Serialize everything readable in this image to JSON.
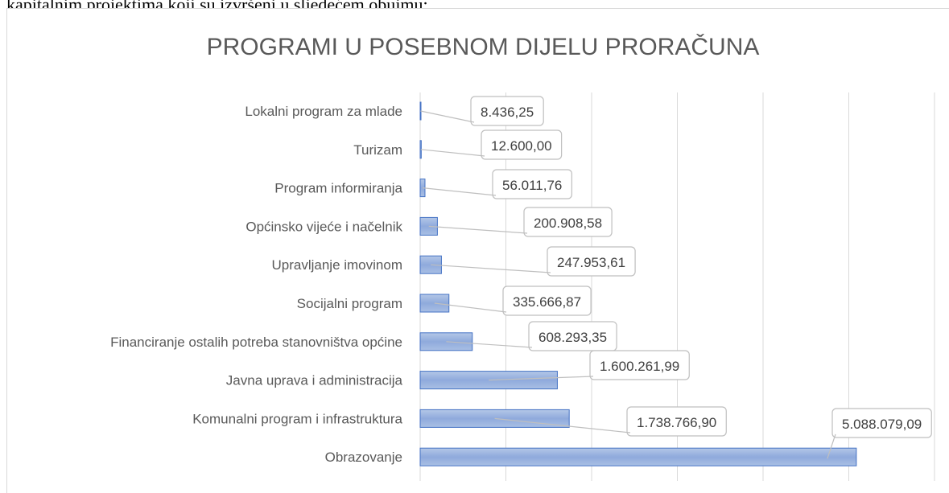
{
  "context_text": "kapitalnim projektima koji su izvršeni u sljedećem obujmu:",
  "chart_data": {
    "type": "bar",
    "orientation": "horizontal",
    "title": "PROGRAMI U POSEBNOM DIJELU PRORAČUNA",
    "categories": [
      "Lokalni program za mlade",
      "Turizam",
      "Program informiranja",
      "Općinsko vijeće i načelnik",
      "Upravljanje imovinom",
      "Socijalni program",
      "Financiranje ostalih potreba stanovništva općine",
      "Javna uprava i administracija",
      "Komunalni program i infrastruktura",
      "Obrazovanje"
    ],
    "values": [
      8436.25,
      12600.0,
      56011.76,
      200908.58,
      247953.61,
      335666.87,
      608293.35,
      1600261.99,
      1738766.9,
      5088079.09
    ],
    "value_labels": [
      "8.436,25",
      "12.600,00",
      "56.011,76",
      "200.908,58",
      "247.953,61",
      "335.666,87",
      "608.293,35",
      "1.600.261,99",
      "1.738.766,90",
      "5.088.079,09"
    ],
    "color": "#8faadc",
    "xlim": [
      0,
      6000000
    ],
    "xticks": [
      0,
      1000000,
      2000000,
      3000000,
      4000000,
      5000000,
      6000000
    ],
    "grid": true
  }
}
